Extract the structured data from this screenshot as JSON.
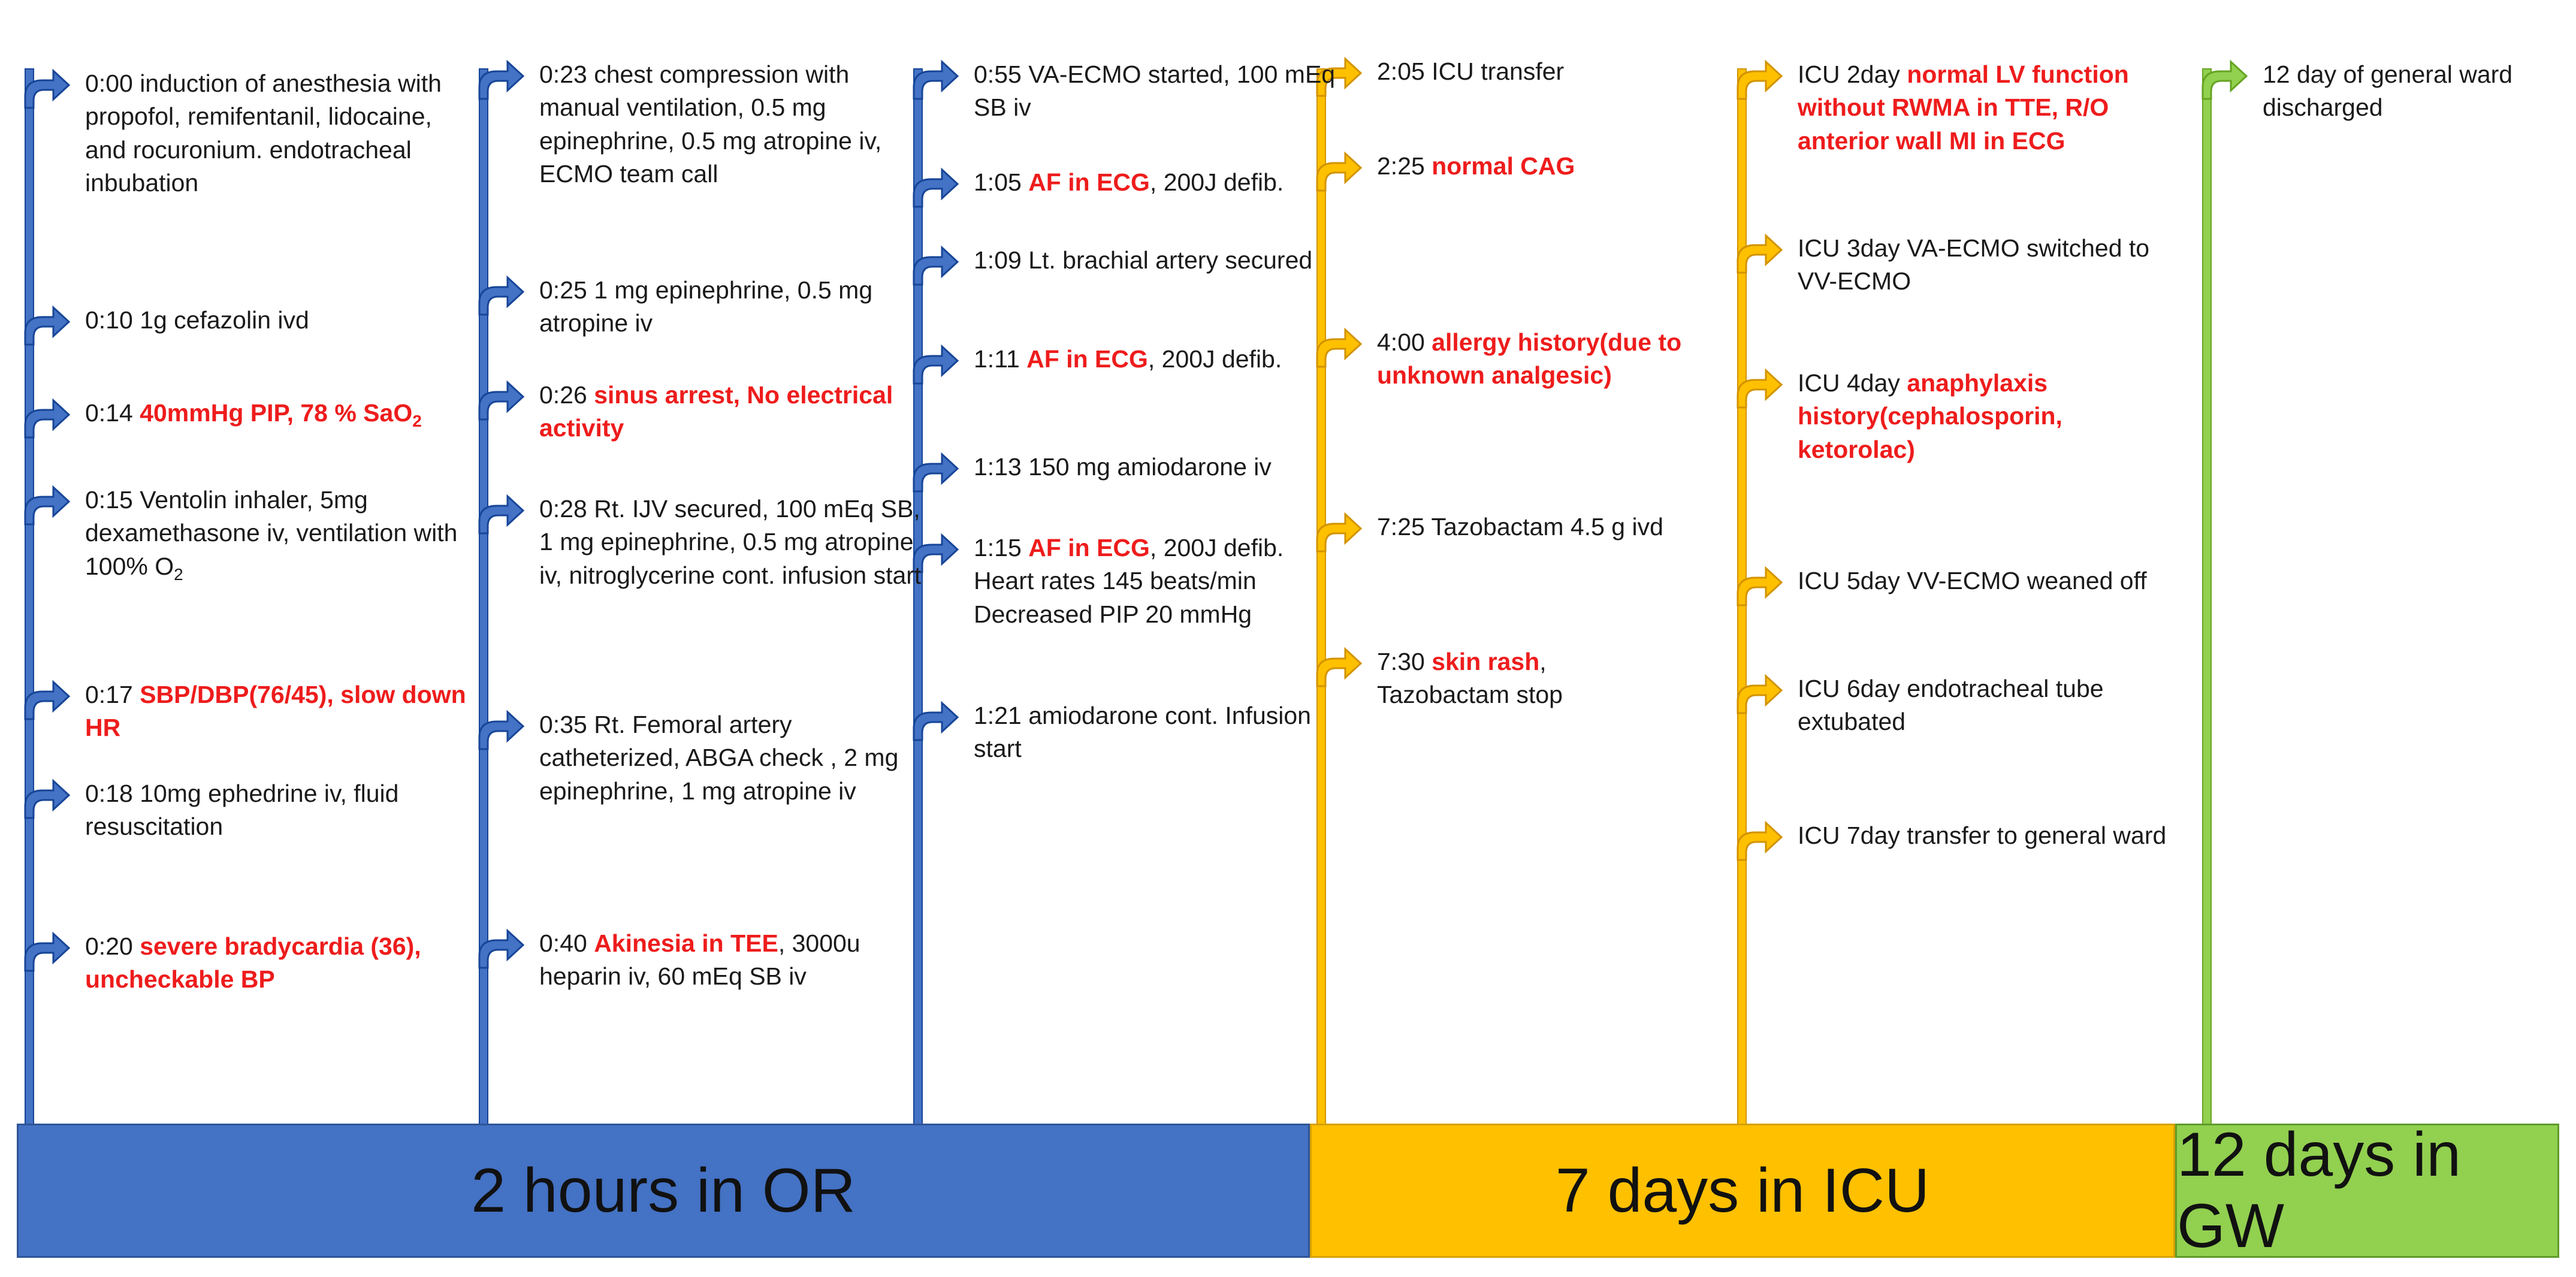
{
  "colors": {
    "or": "#4472c4",
    "icu": "#ffc000",
    "gw": "#92d050",
    "highlight": "#ee1c1c"
  },
  "phases": [
    {
      "key": "or",
      "label": "2 hours in OR"
    },
    {
      "key": "icu",
      "label": "7 days in ICU"
    },
    {
      "key": "gw",
      "label": "12 days in GW"
    }
  ],
  "columns": [
    {
      "phase": "or",
      "events": [
        {
          "text": [
            {
              "t": "0:00 induction of anesthesia with propofol, remifentanil, lidocaine, and rocuronium. endotracheal inbubation"
            }
          ]
        },
        {
          "text": [
            {
              "t": "0:10 1g cefazolin ivd"
            }
          ]
        },
        {
          "text": [
            {
              "t": "0:14 "
            },
            {
              "t": "40mmHg PIP, 78 % SaO",
              "hl": true
            },
            {
              "t": "2",
              "hl": true,
              "sub": true
            }
          ]
        },
        {
          "text": [
            {
              "t": "0:15 Ventolin inhaler, 5mg dexamethasone iv, ventilation with 100% O"
            },
            {
              "t": "2",
              "sub": true
            }
          ]
        },
        {
          "text": [
            {
              "t": "0:17 "
            },
            {
              "t": "SBP/DBP(76/45), slow down HR",
              "hl": true
            }
          ]
        },
        {
          "text": [
            {
              "t": "0:18 10mg ephedrine iv, fluid resuscitation"
            }
          ]
        },
        {
          "text": [
            {
              "t": "0:20 "
            },
            {
              "t": "severe bradycardia (36), uncheckable BP",
              "hl": true
            }
          ]
        }
      ]
    },
    {
      "phase": "or",
      "events": [
        {
          "text": [
            {
              "t": "0:23 chest compression with manual ventilation, 0.5 mg epinephrine, 0.5 mg atropine iv, ECMO team call"
            }
          ]
        },
        {
          "text": [
            {
              "t": "0:25 1 mg epinephrine, 0.5 mg atropine iv"
            }
          ]
        },
        {
          "text": [
            {
              "t": "0:26 "
            },
            {
              "t": "sinus arrest, No electrical activity",
              "hl": true
            }
          ]
        },
        {
          "text": [
            {
              "t": "0:28 Rt. IJV secured, 100 mEq SB, 1 mg epinephrine, 0.5 mg atropine iv, nitroglycerine cont. infusion start"
            }
          ]
        },
        {
          "text": [
            {
              "t": "0:35 Rt. Femoral artery catheterized, ABGA check , 2 mg epinephrine, 1 mg atropine iv"
            }
          ]
        },
        {
          "text": [
            {
              "t": "0:40 "
            },
            {
              "t": "Akinesia in TEE",
              "hl": true
            },
            {
              "t": ", 3000u heparin iv, 60 mEq SB iv"
            }
          ]
        }
      ]
    },
    {
      "phase": "or",
      "events": [
        {
          "text": [
            {
              "t": "0:55 VA-ECMO started, 100 mEq SB iv"
            }
          ]
        },
        {
          "text": [
            {
              "t": "1:05 "
            },
            {
              "t": "AF in ECG",
              "hl": true
            },
            {
              "t": ", 200J defib."
            }
          ]
        },
        {
          "text": [
            {
              "t": "1:09 Lt. brachial artery secured"
            }
          ]
        },
        {
          "text": [
            {
              "t": "1:11 "
            },
            {
              "t": "AF in ECG",
              "hl": true
            },
            {
              "t": ", 200J defib."
            }
          ]
        },
        {
          "text": [
            {
              "t": "1:13 150 mg amiodarone iv"
            }
          ]
        },
        {
          "text": [
            {
              "t": "1:15 "
            },
            {
              "t": "AF in ECG",
              "hl": true
            },
            {
              "t": ", 200J defib.\nHeart rates 145 beats/min\nDecreased PIP 20 mmHg"
            }
          ]
        },
        {
          "text": [
            {
              "t": "1:21 amiodarone cont. Infusion start"
            }
          ]
        }
      ]
    },
    {
      "phase": "icu",
      "events": [
        {
          "text": [
            {
              "t": "2:05 ICU transfer"
            }
          ]
        },
        {
          "text": [
            {
              "t": "2:25 "
            },
            {
              "t": "normal CAG",
              "hl": true
            }
          ]
        },
        {
          "text": [
            {
              "t": "4:00 "
            },
            {
              "t": "allergy history(due to unknown analgesic)",
              "hl": true
            }
          ]
        },
        {
          "text": [
            {
              "t": "7:25 Tazobactam 4.5 g ivd"
            }
          ]
        },
        {
          "text": [
            {
              "t": "7:30 "
            },
            {
              "t": "skin rash",
              "hl": true
            },
            {
              "t": ",\nTazobactam stop"
            }
          ]
        }
      ]
    },
    {
      "phase": "icu",
      "events": [
        {
          "text": [
            {
              "t": "ICU 2day "
            },
            {
              "t": "normal LV function without RWMA in TTE, R/O anterior wall MI in ECG",
              "hl": true
            }
          ]
        },
        {
          "text": [
            {
              "t": "ICU 3day VA-ECMO switched to VV-ECMO"
            }
          ]
        },
        {
          "text": [
            {
              "t": "ICU 4day "
            },
            {
              "t": "anaphylaxis history(cephalosporin, ketorolac)",
              "hl": true
            }
          ]
        },
        {
          "text": [
            {
              "t": "ICU 5day VV-ECMO weaned off"
            }
          ]
        },
        {
          "text": [
            {
              "t": "ICU 6day endotracheal tube extubated"
            }
          ]
        },
        {
          "text": [
            {
              "t": "ICU 7day transfer to general ward"
            }
          ]
        }
      ]
    },
    {
      "phase": "gw",
      "events": [
        {
          "text": [
            {
              "t": "12 day of general ward discharged"
            }
          ]
        }
      ]
    }
  ]
}
